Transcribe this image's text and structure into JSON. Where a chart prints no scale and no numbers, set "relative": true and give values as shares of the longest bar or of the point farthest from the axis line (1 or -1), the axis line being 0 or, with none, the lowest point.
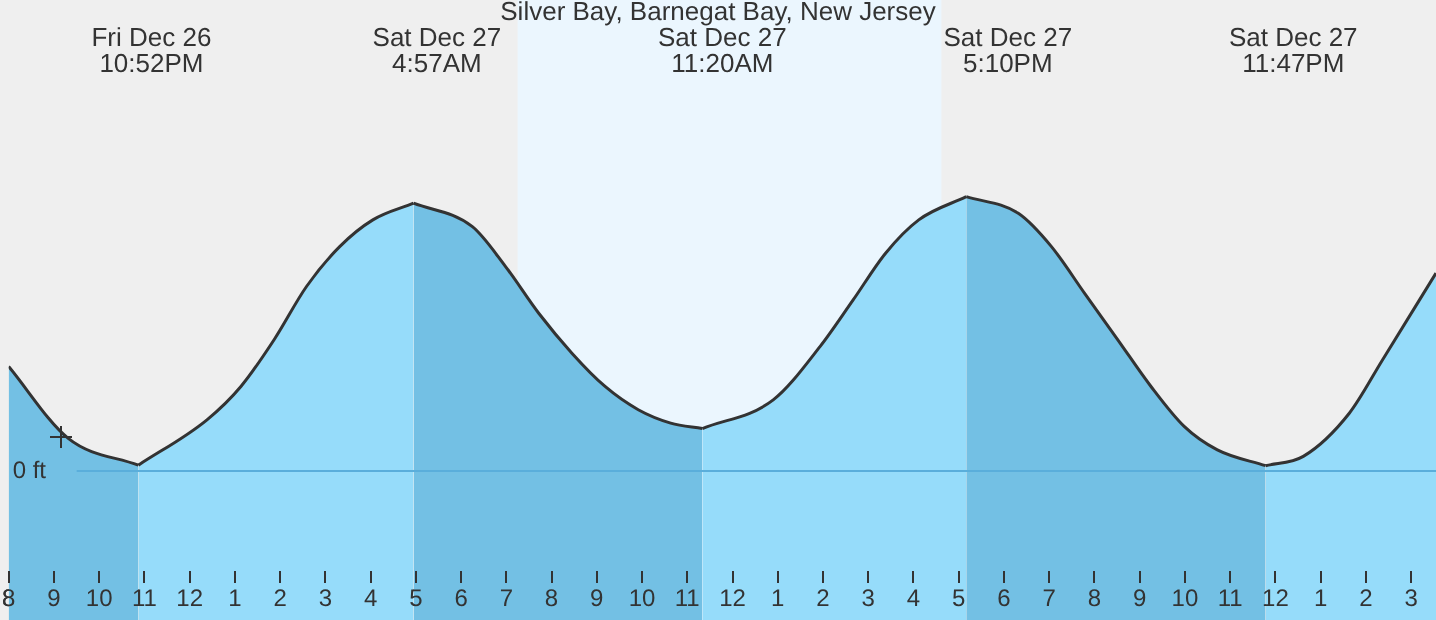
{
  "chart_data": {
    "type": "area",
    "title": "Silver Bay, Barnegat Bay, New Jersey",
    "relative": true,
    "series": [
      {
        "color": "#73c0e4",
        "x": [
          "--12-26T20:00",
          "--12-26T21:19",
          "--12-26T22:52"
        ],
        "values": [
          0.378,
          0.115,
          0.017
        ]
      },
      {
        "color": "#96dcfa",
        "x": [
          "--12-26T22:52",
          "--12-27T00:23",
          "--12-27T01:08",
          "--12-27T01:52",
          "--12-27T02:35",
          "--12-27T03:19",
          "--12-27T04:03",
          "--12-27T04:57"
        ],
        "values": [
          0.017,
          0.183,
          0.305,
          0.476,
          0.671,
          0.817,
          0.915,
          0.976
        ]
      },
      {
        "color": "#73c0e4",
        "x": [
          "--12-27T04:57",
          "--12-27T06:15",
          "--12-27T06:59",
          "--12-27T07:43",
          "--12-27T08:27",
          "--12-27T09:11",
          "--12-27T09:55",
          "--12-27T10:38",
          "--12-27T11:20"
        ],
        "values": [
          0.976,
          0.89,
          0.744,
          0.573,
          0.427,
          0.305,
          0.22,
          0.171,
          0.151
        ]
      },
      {
        "color": "#96dcfa",
        "x": [
          "--12-27T11:20",
          "--12-27T12:54",
          "--12-27T13:56",
          "--12-27T14:40",
          "--12-27T15:23",
          "--12-27T16:07",
          "--12-27T17:10"
        ],
        "values": [
          0.151,
          0.256,
          0.451,
          0.622,
          0.793,
          0.915,
          1.0
        ]
      },
      {
        "color": "#73c0e4",
        "x": [
          "--12-27T17:10",
          "--12-27T18:19",
          "--12-27T19:03",
          "--12-27T19:47",
          "--12-27T20:31",
          "--12-27T21:15",
          "--12-27T21:59",
          "--12-27T22:43",
          "--12-27T23:47"
        ],
        "values": [
          1.0,
          0.939,
          0.817,
          0.646,
          0.476,
          0.305,
          0.159,
          0.073,
          0.015
        ]
      },
      {
        "color": "#96dcfa",
        "x": [
          "--12-27T23:47",
          "--12-28T00:37",
          "--12-28T01:38",
          "--12-28T02:22",
          "--12-28T03:33"
        ],
        "values": [
          0.015,
          0.049,
          0.207,
          0.402,
          0.72
        ]
      }
    ],
    "xlim": [
      "--12-26T20:00",
      "--12-28T03:33"
    ],
    "xticks": [
      {
        "value": "--12-26T20:00",
        "label": "8"
      },
      {
        "value": "--12-26T21:00",
        "label": "9"
      },
      {
        "value": "--12-26T22:00",
        "label": "10"
      },
      {
        "value": "--12-26T23:00",
        "label": "11"
      },
      {
        "value": "--12-27T00:00",
        "label": "12"
      },
      {
        "value": "--12-27T01:00",
        "label": "1"
      },
      {
        "value": "--12-27T02:00",
        "label": "2"
      },
      {
        "value": "--12-27T03:00",
        "label": "3"
      },
      {
        "value": "--12-27T04:00",
        "label": "4"
      },
      {
        "value": "--12-27T05:00",
        "label": "5"
      },
      {
        "value": "--12-27T06:00",
        "label": "6"
      },
      {
        "value": "--12-27T07:00",
        "label": "7"
      },
      {
        "value": "--12-27T08:00",
        "label": "8"
      },
      {
        "value": "--12-27T09:00",
        "label": "9"
      },
      {
        "value": "--12-27T10:00",
        "label": "10"
      },
      {
        "value": "--12-27T11:00",
        "label": "11"
      },
      {
        "value": "--12-27T12:00",
        "label": "12"
      },
      {
        "value": "--12-27T13:00",
        "label": "1"
      },
      {
        "value": "--12-27T14:00",
        "label": "2"
      },
      {
        "value": "--12-27T15:00",
        "label": "3"
      },
      {
        "value": "--12-27T16:00",
        "label": "4"
      },
      {
        "value": "--12-27T17:00",
        "label": "5"
      },
      {
        "value": "--12-27T18:00",
        "label": "6"
      },
      {
        "value": "--12-27T19:00",
        "label": "7"
      },
      {
        "value": "--12-27T20:00",
        "label": "8"
      },
      {
        "value": "--12-27T21:00",
        "label": "9"
      },
      {
        "value": "--12-27T22:00",
        "label": "10"
      },
      {
        "value": "--12-27T23:00",
        "label": "11"
      },
      {
        "value": "--12-28T00:00",
        "label": "12"
      },
      {
        "value": "--12-28T01:00",
        "label": "1"
      },
      {
        "value": "--12-28T02:00",
        "label": "2"
      },
      {
        "value": "--12-28T03:00",
        "label": "3"
      }
    ],
    "ref_lines": [
      {
        "axis": "y",
        "value": 0,
        "label": "0 ft",
        "color": "#5aaedb"
      }
    ],
    "bands": [
      {
        "axis": "x",
        "from": "--12-27T07:15",
        "to": "--12-27T16:37",
        "color": "#ebf6fe"
      }
    ],
    "annotations": [
      "Fri Dec 26\n10:52PM",
      "Sat Dec 27\n4:57AM",
      "Sat Dec 27\n11:20AM",
      "Sat Dec 27\n5:10PM",
      "Sat Dec 27\n11:47PM"
    ],
    "legend": false
  }
}
